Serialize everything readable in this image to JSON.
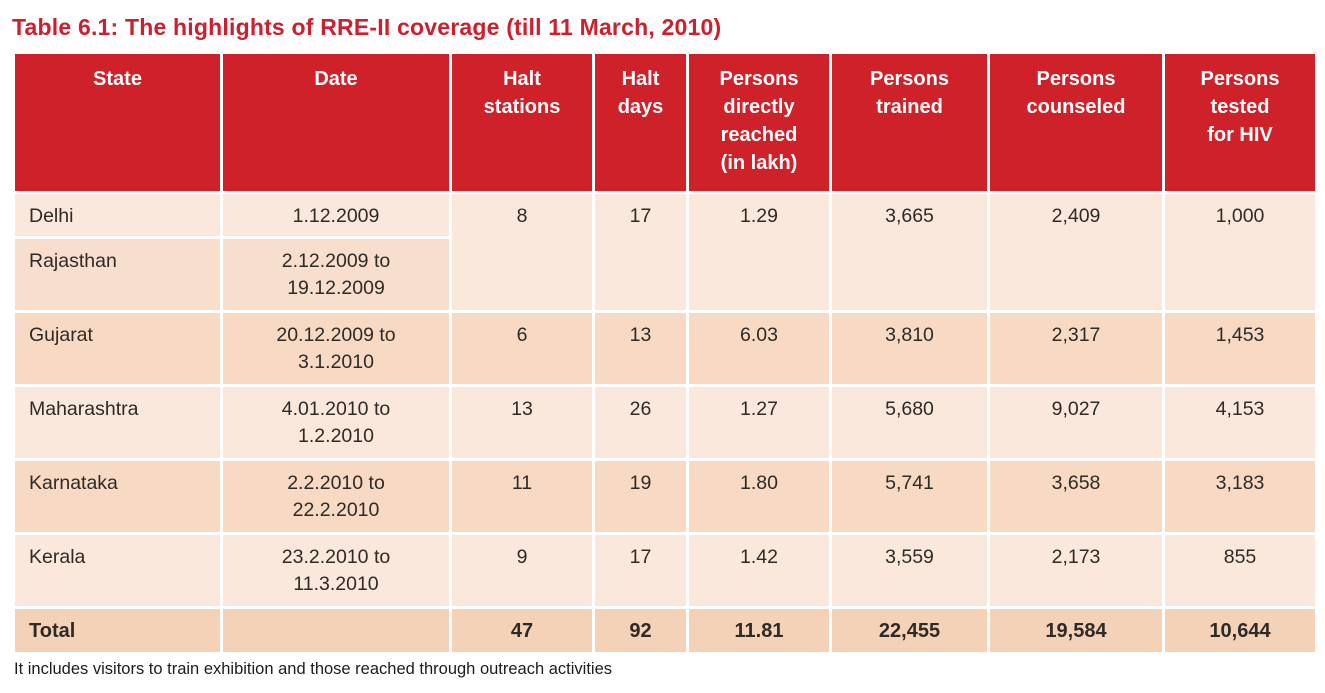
{
  "page": {
    "title": "Table 6.1: The highlights of RRE-II coverage (till 11 March, 2010)",
    "footnote": "It includes visitors to train exhibition and those reached through outreach activities"
  },
  "table": {
    "headers": [
      "State",
      "Date",
      "Halt\nstations",
      "Halt\ndays",
      "Persons\ndirectly\nreached\n(in lakh)",
      "Persons\ntrained",
      "Persons\ncounseled",
      "Persons\ntested\nfor HIV"
    ],
    "rows": [
      {
        "state": "Delhi",
        "date": "1.12.2009",
        "halt_stations": "8",
        "halt_days": "17",
        "persons_reached": "1.29",
        "persons_trained": "3,665",
        "persons_counseled": "2,409",
        "persons_tested": "1,000"
      },
      {
        "state": "Rajasthan",
        "date": "2.12.2009 to\n19.12.2009"
      },
      {
        "state": "Gujarat",
        "date": "20.12.2009 to\n3.1.2010",
        "halt_stations": "6",
        "halt_days": "13",
        "persons_reached": "6.03",
        "persons_trained": "3,810",
        "persons_counseled": "2,317",
        "persons_tested": "1,453"
      },
      {
        "state": "Maharashtra",
        "date": "4.01.2010 to\n1.2.2010",
        "halt_stations": "13",
        "halt_days": "26",
        "persons_reached": "1.27",
        "persons_trained": "5,680",
        "persons_counseled": "9,027",
        "persons_tested": "4,153"
      },
      {
        "state": "Karnataka",
        "date": "2.2.2010 to\n22.2.2010",
        "halt_stations": "11",
        "halt_days": "19",
        "persons_reached": "1.80",
        "persons_trained": "5,741",
        "persons_counseled": "3,658",
        "persons_tested": "3,183"
      },
      {
        "state": "Kerala",
        "date": "23.2.2010 to\n11.3.2010",
        "halt_stations": "9",
        "halt_days": "17",
        "persons_reached": "1.42",
        "persons_trained": "3,559",
        "persons_counseled": "2,173",
        "persons_tested": "855"
      }
    ],
    "total": {
      "label": "Total",
      "date": "",
      "halt_stations": "47",
      "halt_days": "92",
      "persons_reached": "11.81",
      "persons_trained": "22,455",
      "persons_counseled": "19,584",
      "persons_tested": "10,644"
    }
  },
  "colors": {
    "title_text": "#cc202e",
    "header_bg": "#ce2129",
    "row_light": "#fbe8dc",
    "row_medium": "#f8decd",
    "row_dark": "#f7d9c4",
    "total_bg": "#f4d2b8",
    "body_text": "#2e2a26"
  }
}
